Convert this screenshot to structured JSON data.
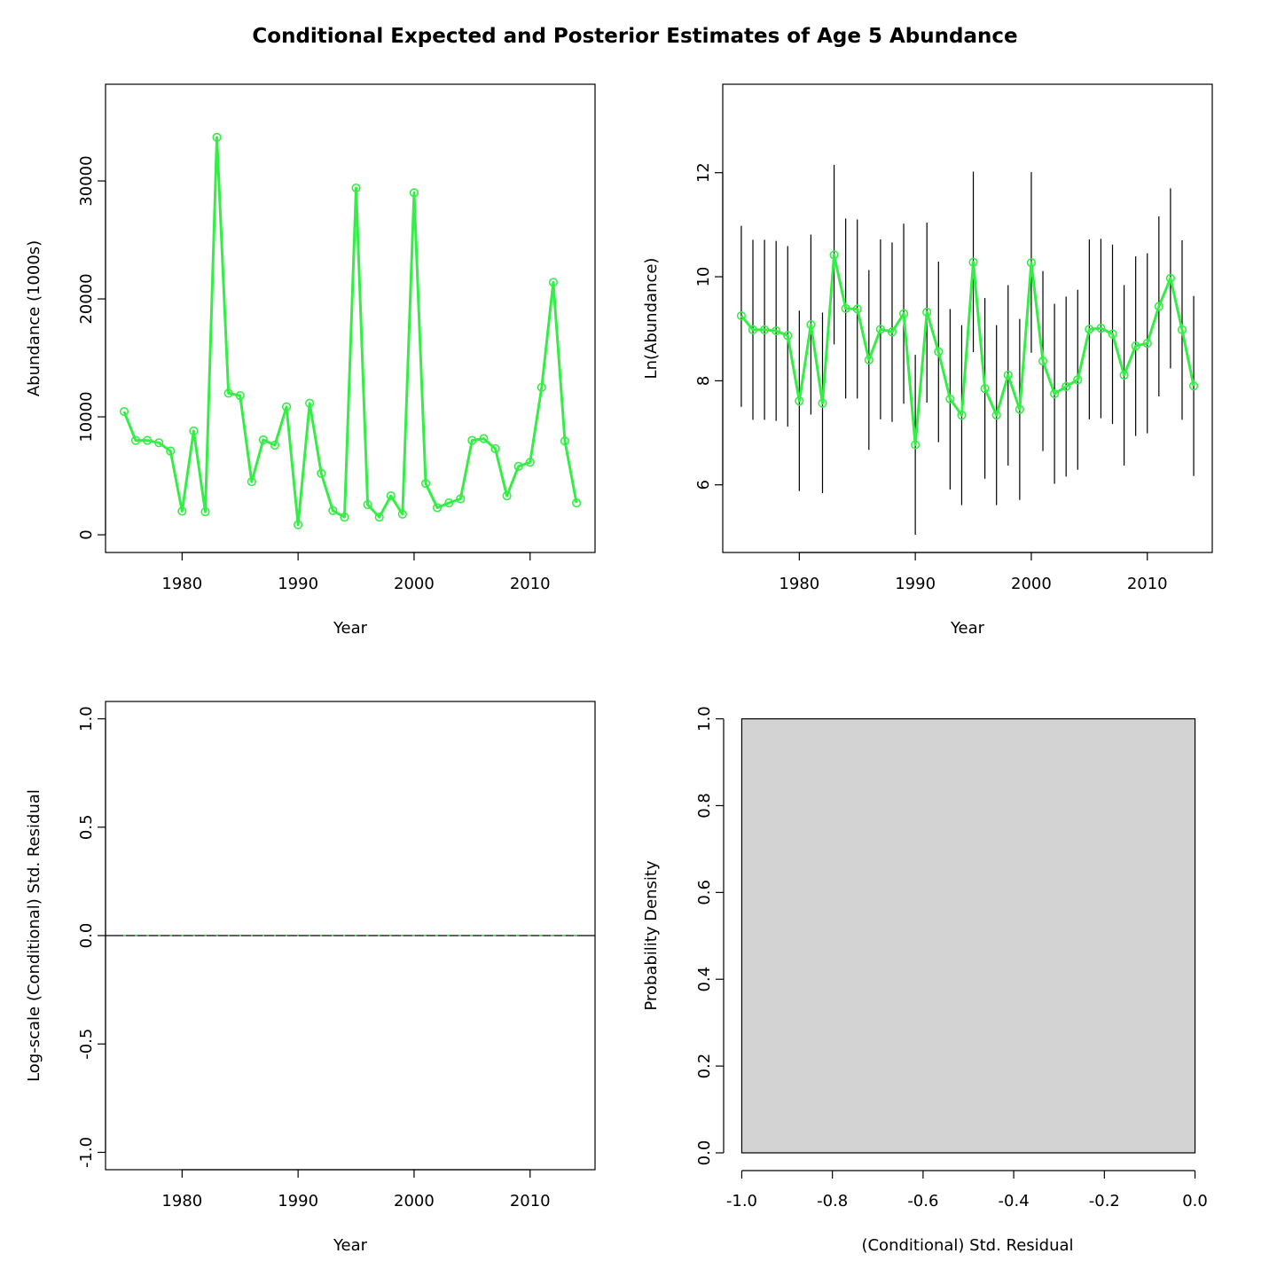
{
  "figure": {
    "title": "Conditional Expected and Posterior Estimates of Age 5 Abundance"
  },
  "colors": {
    "series": "#33ee44",
    "errorbar": "#000000",
    "histogram_fill": "#d3d3d3",
    "axes": "#000000"
  },
  "chart_data": [
    {
      "type": "line",
      "xlabel": "Year",
      "ylabel": "Abundance (1000s)",
      "xlim": [
        1973.4,
        2015.6
      ],
      "ylim": [
        -1500,
        38200
      ],
      "xticks": [
        1980,
        1990,
        2000,
        2010
      ],
      "yticks": [
        0,
        10000,
        20000,
        30000
      ],
      "markers": "open-circle",
      "series": [
        {
          "x": [
            1975,
            1976,
            1977,
            1978,
            1979,
            1980,
            1981,
            1982,
            1983,
            1984,
            1985,
            1986,
            1987,
            1988,
            1989,
            1990,
            1991,
            1992,
            1993,
            1994,
            1995,
            1996,
            1997,
            1998,
            1999,
            2000,
            2001,
            2002,
            2003,
            2004,
            2005,
            2006,
            2007,
            2008,
            2009,
            2010,
            2011,
            2012,
            2013,
            2014
          ],
          "y": [
            10450,
            8000,
            8000,
            7800,
            7100,
            2000,
            8800,
            1950,
            33700,
            12000,
            11800,
            4500,
            8050,
            7600,
            10850,
            850,
            11150,
            5200,
            2050,
            1500,
            29400,
            2550,
            1500,
            3300,
            1750,
            29000,
            4350,
            2300,
            2700,
            3050,
            8000,
            8150,
            7300,
            3300,
            5800,
            6150,
            12500,
            21400,
            7950,
            2700
          ]
        }
      ]
    },
    {
      "type": "line",
      "xlabel": "Year",
      "ylabel": "Ln(Abundance)",
      "xlim": [
        1973.4,
        2015.6
      ],
      "ylim": [
        4.7,
        13.7
      ],
      "xticks": [
        1980,
        1990,
        2000,
        2010
      ],
      "yticks": [
        6,
        8,
        10,
        12
      ],
      "markers": "open-circle",
      "error_bars": "vertical interval per year",
      "series": [
        {
          "x": [
            1975,
            1976,
            1977,
            1978,
            1979,
            1980,
            1981,
            1982,
            1983,
            1984,
            1985,
            1986,
            1987,
            1988,
            1989,
            1990,
            1991,
            1992,
            1993,
            1994,
            1995,
            1996,
            1997,
            1998,
            1999,
            2000,
            2001,
            2002,
            2003,
            2004,
            2005,
            2006,
            2007,
            2008,
            2009,
            2010,
            2011,
            2012,
            2013,
            2014
          ],
          "y": [
            9.25,
            8.98,
            8.98,
            8.96,
            8.87,
            7.61,
            9.08,
            7.57,
            10.42,
            9.39,
            9.38,
            8.4,
            8.99,
            8.94,
            9.29,
            6.77,
            9.32,
            8.56,
            7.65,
            7.34,
            10.28,
            7.85,
            7.34,
            8.11,
            7.45,
            10.27,
            8.38,
            7.75,
            7.89,
            8.02,
            8.99,
            9.01,
            8.9,
            8.11,
            8.67,
            8.72,
            9.43,
            9.97,
            8.98,
            7.9
          ],
          "lower": [
            7.5,
            7.25,
            7.25,
            7.23,
            7.12,
            5.88,
            7.35,
            5.84,
            8.7,
            7.66,
            7.66,
            6.67,
            7.26,
            7.21,
            7.56,
            5.04,
            7.58,
            6.82,
            5.91,
            5.61,
            8.55,
            6.12,
            5.61,
            6.37,
            5.71,
            8.54,
            6.65,
            6.02,
            6.16,
            6.29,
            7.26,
            7.28,
            7.17,
            6.37,
            6.94,
            6.99,
            7.7,
            8.24,
            7.25,
            6.17
          ],
          "upper": [
            10.98,
            10.71,
            10.71,
            10.69,
            10.59,
            9.35,
            10.81,
            9.31,
            12.15,
            11.12,
            11.1,
            10.13,
            10.72,
            10.66,
            11.02,
            8.5,
            11.04,
            10.29,
            9.38,
            9.07,
            12.02,
            9.59,
            9.07,
            9.84,
            9.19,
            12.01,
            10.11,
            9.48,
            9.62,
            9.75,
            10.72,
            10.73,
            10.62,
            9.84,
            10.39,
            10.45,
            11.16,
            11.7,
            10.7,
            9.63
          ]
        }
      ]
    },
    {
      "type": "line",
      "xlabel": "Year",
      "ylabel": "Log-scale (Conditional) Std. Residual",
      "xlim": [
        1973.4,
        2015.6
      ],
      "ylim": [
        -1.08,
        1.08
      ],
      "xticks": [
        1980,
        1990,
        2000,
        2010
      ],
      "yticks": [
        -1.0,
        -0.5,
        0.0,
        0.5,
        1.0
      ],
      "ytick_labels": [
        "-1.0",
        "-0.5",
        "0.0",
        "0.5",
        "1.0"
      ],
      "reference_line": 0,
      "series": [
        {
          "x": [
            1975,
            1976,
            1977,
            1978,
            1979,
            1980,
            1981,
            1982,
            1983,
            1984,
            1985,
            1986,
            1987,
            1988,
            1989,
            1990,
            1991,
            1992,
            1993,
            1994,
            1995,
            1996,
            1997,
            1998,
            1999,
            2000,
            2001,
            2002,
            2003,
            2004,
            2005,
            2006,
            2007,
            2008,
            2009,
            2010,
            2011,
            2012,
            2013,
            2014
          ],
          "y": [
            0,
            0,
            0,
            0,
            0,
            0,
            0,
            0,
            0,
            0,
            0,
            0,
            0,
            0,
            0,
            0,
            0,
            0,
            0,
            0,
            0,
            0,
            0,
            0,
            0,
            0,
            0,
            0,
            0,
            0,
            0,
            0,
            0,
            0,
            0,
            0,
            0,
            0,
            0,
            0
          ]
        }
      ]
    },
    {
      "type": "bar",
      "subtype": "histogram",
      "xlabel": "(Conditional) Std. Residual",
      "ylabel": "Probability Density",
      "xlim": [
        -1.04,
        0.04
      ],
      "ylim": [
        0,
        1.04
      ],
      "xticks": [
        -1.0,
        -0.8,
        -0.6,
        -0.4,
        -0.2,
        0.0
      ],
      "xtick_labels": [
        "-1.0",
        "-0.8",
        "-0.6",
        "-0.4",
        "-0.2",
        "0.0"
      ],
      "yticks": [
        0.0,
        0.2,
        0.4,
        0.6,
        0.8,
        1.0
      ],
      "ytick_labels": [
        "0.0",
        "0.2",
        "0.4",
        "0.6",
        "0.8",
        "1.0"
      ],
      "bins": [
        {
          "from": -1.0,
          "to": 0.0,
          "density": 1.0
        }
      ]
    }
  ]
}
